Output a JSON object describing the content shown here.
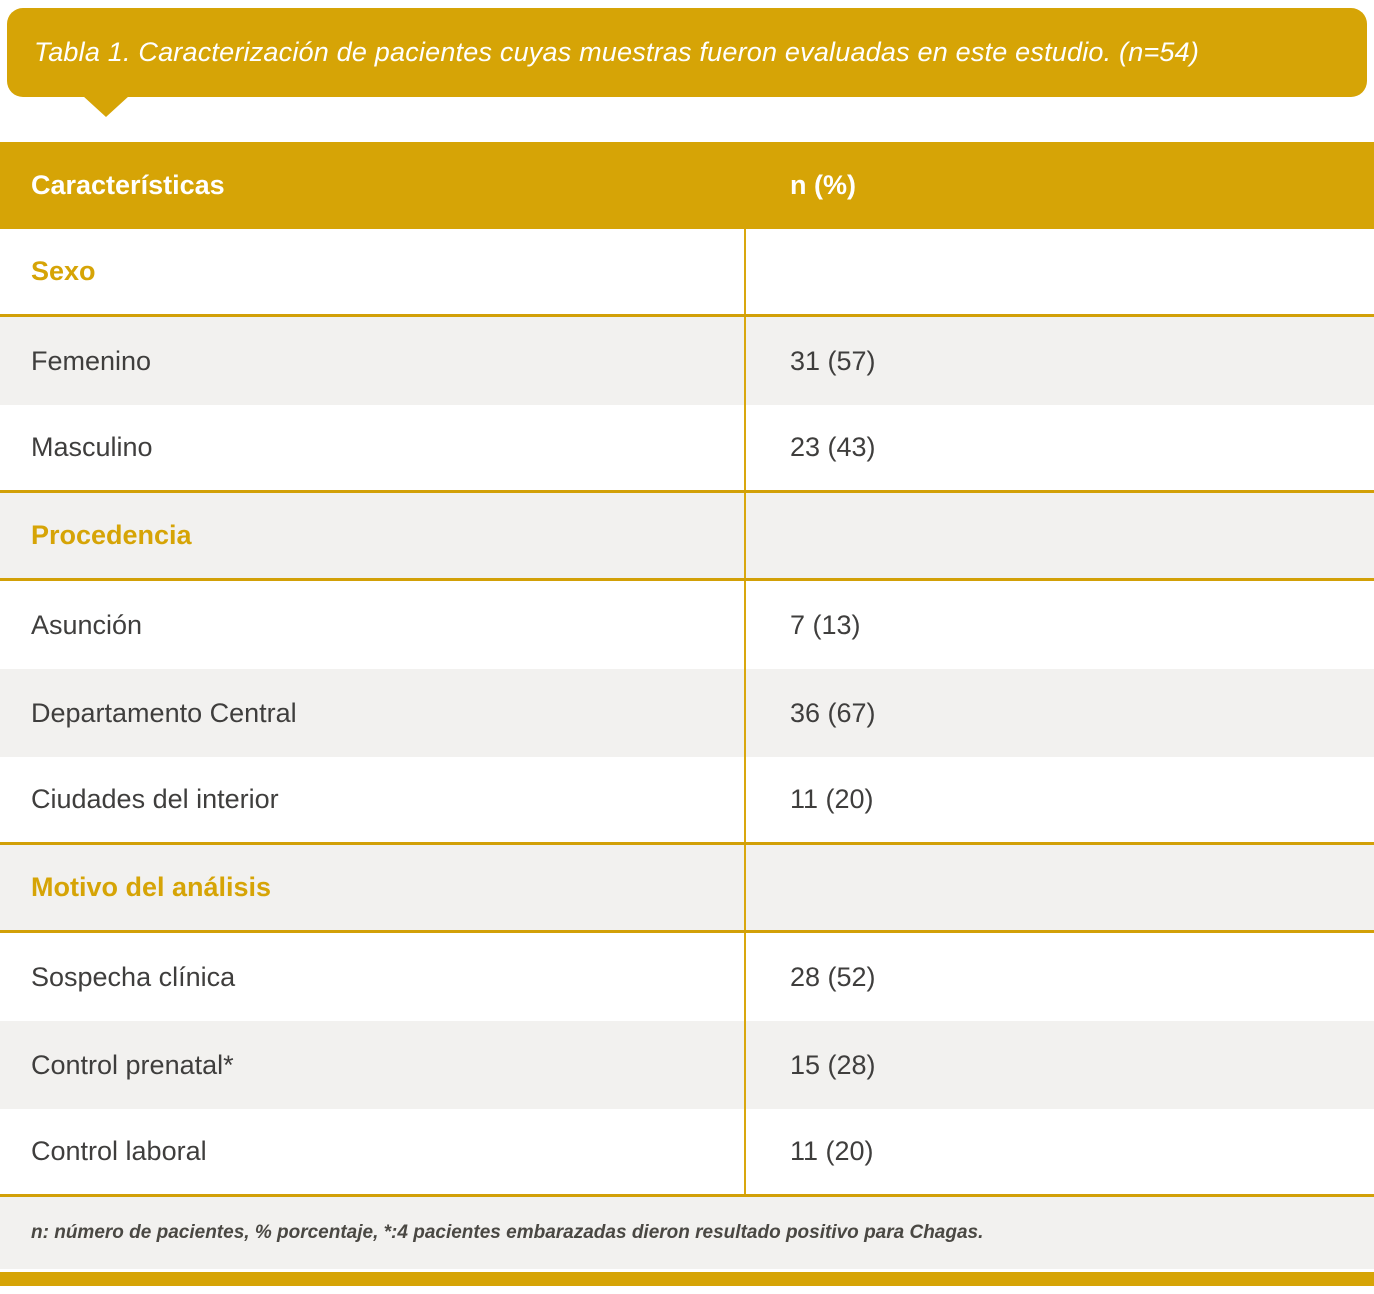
{
  "title": {
    "text": "Tabla 1. Caracterización de pacientes cuyas muestras fueron evaluadas en este estudio. (n=54)"
  },
  "colors": {
    "gold": "#D6A406",
    "row_gray": "#F2F1EF",
    "body_text": "#3F3E3D",
    "title_text": "#FFFFFF"
  },
  "table": {
    "header": {
      "col1": "Características",
      "col2": "n (%)"
    },
    "rows": [
      {
        "label": "Sexo",
        "value": "",
        "type": "section"
      },
      {
        "label": "Femenino",
        "value": "31 (57)",
        "type": "data"
      },
      {
        "label": "Masculino",
        "value": "23 (43)",
        "type": "data"
      },
      {
        "label": "Procedencia",
        "value": "",
        "type": "section"
      },
      {
        "label": "Asunción",
        "value": "7 (13)",
        "type": "data"
      },
      {
        "label": "Departamento Central",
        "value": "36 (67)",
        "type": "data"
      },
      {
        "label": "Ciudades del interior",
        "value": "11 (20)",
        "type": "data"
      },
      {
        "label": "Motivo del análisis",
        "value": "",
        "type": "section"
      },
      {
        "label": "Sospecha clínica",
        "value": "28 (52)",
        "type": "data"
      },
      {
        "label": "Control prenatal*",
        "value": "15 (28)",
        "type": "data"
      },
      {
        "label": "Control laboral",
        "value": "11 (20)",
        "type": "data"
      }
    ]
  },
  "footer": {
    "note": "n: número de pacientes, % porcentaje, *:4 pacientes embarazadas dieron resultado positivo para Chagas."
  }
}
